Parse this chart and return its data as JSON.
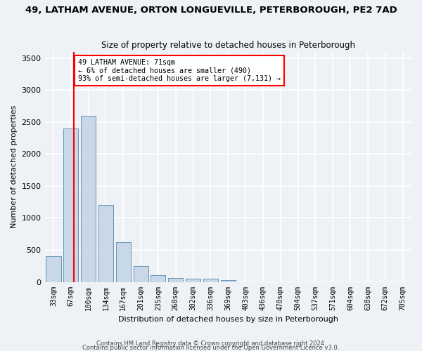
{
  "title_line1": "49, LATHAM AVENUE, ORTON LONGUEVILLE, PETERBOROUGH, PE2 7AD",
  "title_line2": "Size of property relative to detached houses in Peterborough",
  "xlabel": "Distribution of detached houses by size in Peterborough",
  "ylabel": "Number of detached properties",
  "categories": [
    "33sqm",
    "67sqm",
    "100sqm",
    "134sqm",
    "167sqm",
    "201sqm",
    "235sqm",
    "268sqm",
    "302sqm",
    "336sqm",
    "369sqm",
    "403sqm",
    "436sqm",
    "470sqm",
    "504sqm",
    "537sqm",
    "571sqm",
    "604sqm",
    "638sqm",
    "672sqm",
    "705sqm"
  ],
  "bar_values": [
    400,
    2400,
    2600,
    1200,
    620,
    250,
    100,
    60,
    55,
    55,
    30,
    0,
    0,
    0,
    0,
    0,
    0,
    0,
    0,
    0,
    0
  ],
  "bar_color": "#c8d8e8",
  "bar_edge_color": "#5588aa",
  "vline_x": 1.18,
  "annotation_text": "49 LATHAM AVENUE: 71sqm\n← 6% of detached houses are smaller (490)\n93% of semi-detached houses are larger (7,131) →",
  "annotation_box_color": "white",
  "annotation_box_edge_color": "red",
  "vline_color": "red",
  "ylim": [
    0,
    3600
  ],
  "yticks": [
    0,
    500,
    1000,
    1500,
    2000,
    2500,
    3000,
    3500
  ],
  "background_color": "#eef2f7",
  "grid_color": "white",
  "footnote1": "Contains HM Land Registry data © Crown copyright and database right 2024.",
  "footnote2": "Contains public sector information licensed under the Open Government Licence v3.0."
}
